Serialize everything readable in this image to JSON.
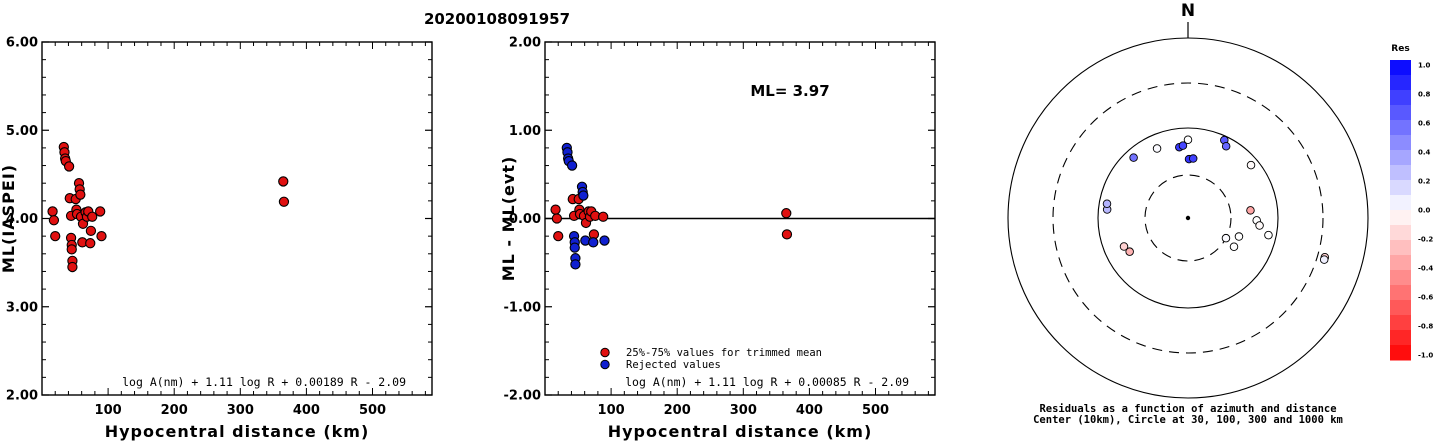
{
  "title": "20200108091957",
  "chart_data": [
    {
      "type": "scatter",
      "xlabel": "Hypocentral distance (km)",
      "ylabel": "ML(IASPEI)",
      "xlim": [
        0,
        590
      ],
      "ylim": [
        2.0,
        6.0
      ],
      "xticks": [
        "100",
        "200",
        "300",
        "400",
        "500"
      ],
      "yticks": [
        "2.00",
        "3.00",
        "4.00",
        "5.00",
        "6.00"
      ],
      "formula": "log A(nm) + 1.11 log R + 0.00189 R - 2.09",
      "series": [
        {
          "color": "#e01010",
          "points": [
            [
              16,
              4.08
            ],
            [
              18,
              3.98
            ],
            [
              20,
              3.8
            ],
            [
              33,
              4.81
            ],
            [
              34,
              4.75
            ],
            [
              35,
              4.68
            ],
            [
              36,
              4.65
            ],
            [
              41,
              4.59
            ],
            [
              42,
              4.23
            ],
            [
              44,
              4.03
            ],
            [
              44,
              3.78
            ],
            [
              45,
              3.7
            ],
            [
              45,
              3.65
            ],
            [
              46,
              3.52
            ],
            [
              46,
              3.45
            ],
            [
              51,
              4.22
            ],
            [
              52,
              4.1
            ],
            [
              53,
              4.05
            ],
            [
              56,
              4.4
            ],
            [
              57,
              4.33
            ],
            [
              58,
              4.27
            ],
            [
              59,
              4.02
            ],
            [
              61,
              3.73
            ],
            [
              62,
              3.94
            ],
            [
              66,
              4.07
            ],
            [
              68,
              4.02
            ],
            [
              70,
              4.08
            ],
            [
              73,
              3.72
            ],
            [
              74,
              3.86
            ],
            [
              76,
              4.02
            ],
            [
              88,
              4.08
            ],
            [
              90,
              3.8
            ],
            [
              365,
              4.42
            ],
            [
              366,
              4.19
            ]
          ]
        }
      ]
    },
    {
      "type": "scatter",
      "xlabel": "Hypocentral distance (km)",
      "ylabel": "ML - ML(evt)",
      "xlim": [
        0,
        590
      ],
      "ylim": [
        -2.0,
        2.0
      ],
      "xticks": [
        "100",
        "200",
        "300",
        "400",
        "500"
      ],
      "yticks": [
        "-2.00",
        "-1.00",
        "0.00",
        "1.00",
        "2.00"
      ],
      "annotation": "ML= 3.97",
      "formula": "log A(nm) + 1.11 log R + 0.00085 R - 2.09",
      "legend": [
        "25%-75% values for trimmed mean",
        "Rejected values"
      ],
      "series": [
        {
          "name": "25%-75% values for trimmed mean",
          "color": "#e01010",
          "points": [
            [
              16,
              0.1
            ],
            [
              18,
              0.0
            ],
            [
              20,
              -0.2
            ],
            [
              42,
              0.22
            ],
            [
              44,
              0.03
            ],
            [
              51,
              0.22
            ],
            [
              52,
              0.1
            ],
            [
              53,
              0.05
            ],
            [
              59,
              0.03
            ],
            [
              62,
              -0.05
            ],
            [
              66,
              0.08
            ],
            [
              68,
              0.02
            ],
            [
              70,
              0.08
            ],
            [
              74,
              -0.18
            ],
            [
              76,
              0.03
            ],
            [
              88,
              0.02
            ],
            [
              365,
              0.06
            ],
            [
              366,
              -0.18
            ]
          ]
        },
        {
          "name": "Rejected values",
          "color": "#1020d0",
          "points": [
            [
              33,
              0.8
            ],
            [
              34,
              0.75
            ],
            [
              35,
              0.68
            ],
            [
              36,
              0.65
            ],
            [
              41,
              0.6
            ],
            [
              44,
              -0.2
            ],
            [
              45,
              -0.27
            ],
            [
              45,
              -0.33
            ],
            [
              46,
              -0.45
            ],
            [
              46,
              -0.52
            ],
            [
              56,
              0.36
            ],
            [
              57,
              0.3
            ],
            [
              58,
              0.26
            ],
            [
              61,
              -0.25
            ],
            [
              73,
              -0.27
            ],
            [
              90,
              -0.25
            ]
          ]
        }
      ]
    },
    {
      "type": "scatter",
      "north_label": "N",
      "colorbar_title": "Res",
      "colorbar_ticks": [
        "1.0",
        "0.8",
        "0.6",
        "0.4",
        "0.2",
        "0.0",
        "-0.2",
        "-0.4",
        "-0.6",
        "-0.8",
        "-1.0"
      ],
      "caption": [
        "Residuals as a function of azimuth and distance",
        "Center (10km), Circle at 30, 100, 300 and 1000 km"
      ],
      "points": [
        {
          "az": 0,
          "dist": 74,
          "res": 0.0
        },
        {
          "az": 25,
          "dist": 90,
          "res": 0.65
        },
        {
          "az": 28,
          "dist": 80,
          "res": 0.6
        },
        {
          "az": 50,
          "dist": 82,
          "res": -0.02
        },
        {
          "az": 83,
          "dist": 50,
          "res": -0.35
        },
        {
          "az": 92,
          "dist": 58,
          "res": 0.0
        },
        {
          "az": 96,
          "dist": 63,
          "res": -0.02
        },
        {
          "az": 110,
          "dist": 40,
          "res": 0.0
        },
        {
          "az": 102,
          "dist": 82,
          "res": 0.0
        },
        {
          "az": 106,
          "dist": 365,
          "res": -0.18
        },
        {
          "az": 107,
          "dist": 366,
          "res": 0.06
        },
        {
          "az": 118,
          "dist": 30,
          "res": 0.02
        },
        {
          "az": 122,
          "dist": 40,
          "res": 0.0
        },
        {
          "az": 240,
          "dist": 56,
          "res": -0.3
        },
        {
          "az": 246,
          "dist": 60,
          "res": -0.18
        },
        {
          "az": 276,
          "dist": 80,
          "res": 0.28
        },
        {
          "az": 280,
          "dist": 82,
          "res": 0.3
        },
        {
          "az": 318,
          "dist": 80,
          "res": 0.55
        },
        {
          "az": 336,
          "dist": 70,
          "res": 0.02
        },
        {
          "az": 353,
          "dist": 62,
          "res": 0.78
        },
        {
          "az": 356,
          "dist": 64,
          "res": 0.72
        },
        {
          "az": 1,
          "dist": 45,
          "res": 0.8
        },
        {
          "az": 5,
          "dist": 46,
          "res": 0.75
        }
      ]
    }
  ]
}
